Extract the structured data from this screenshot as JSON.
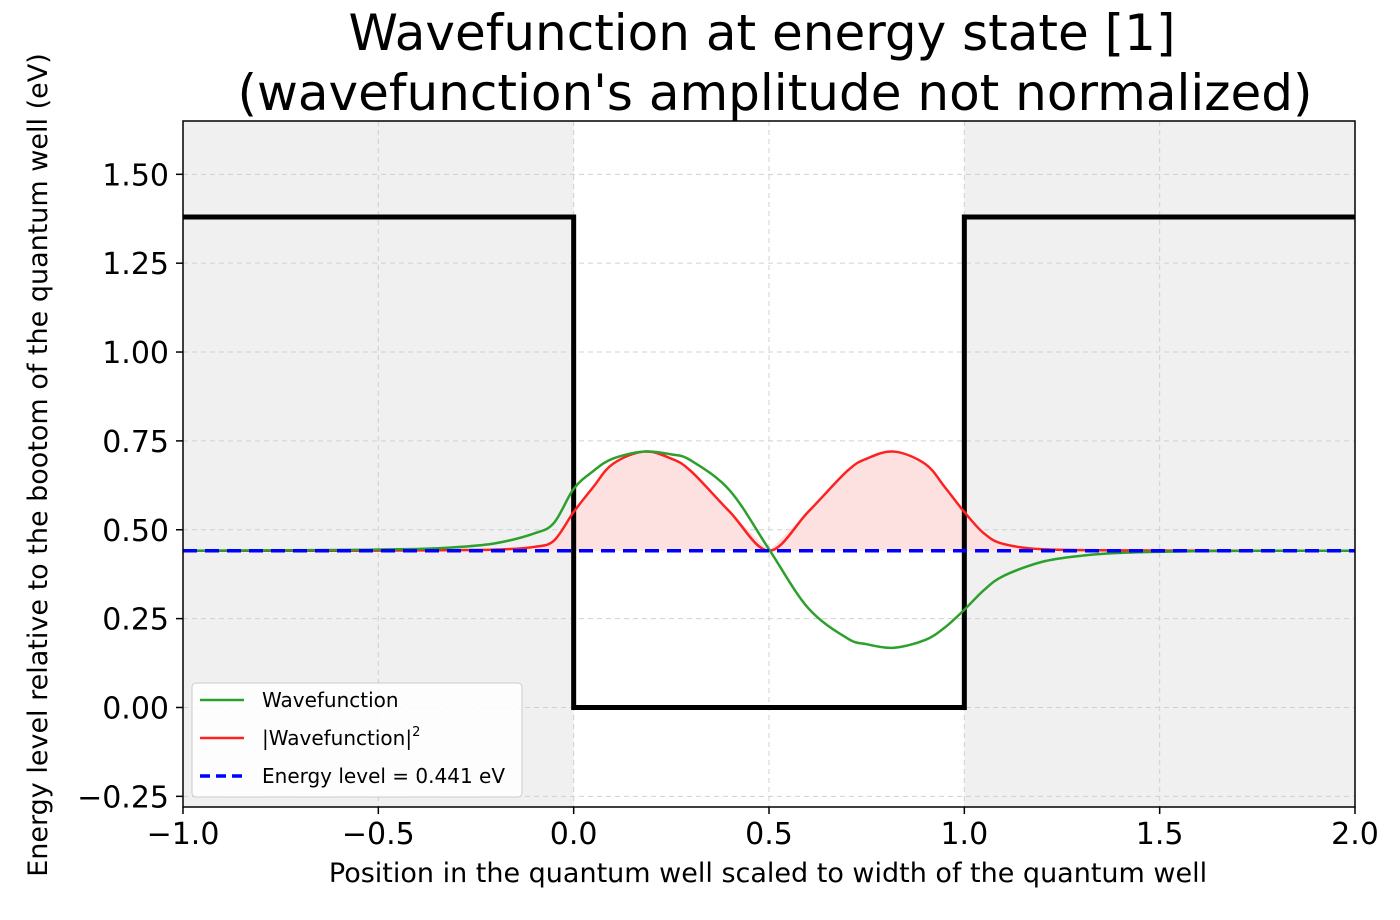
{
  "chart_data": {
    "type": "line",
    "title_line1": "Wavefunction at energy state [1]",
    "title_line2": "(wavefunction's amplitude not normalized)",
    "xlabel": "Position in the quantum well scaled to width of the quantum well",
    "ylabel": "Energy level relative to the bootom of the quantum well (eV)",
    "xlim": [
      -1.0,
      2.0
    ],
    "ylim": [
      -0.28,
      1.65
    ],
    "xticks": [
      -1.0,
      -0.5,
      0.0,
      0.5,
      1.0,
      1.5,
      2.0
    ],
    "xtick_labels": [
      "−1.0",
      "−0.5",
      "0.0",
      "0.5",
      "1.0",
      "1.5",
      "2.0"
    ],
    "yticks": [
      -0.25,
      0.0,
      0.25,
      0.5,
      0.75,
      1.0,
      1.25,
      1.5
    ],
    "ytick_labels": [
      "−0.25",
      "0.00",
      "0.25",
      "0.50",
      "0.75",
      "1.00",
      "1.25",
      "1.50"
    ],
    "grid": true,
    "legend_position": "lower-left",
    "potential": {
      "barrier_height": 1.38,
      "well_x": [
        0.0,
        1.0
      ],
      "barrier_fill_color": "#f0f0f0",
      "line_color": "#000000"
    },
    "energy_level": 0.441,
    "series": [
      {
        "name": "Wavefunction",
        "color": "#2ca02c",
        "x": [
          -1.0,
          -0.8,
          -0.6,
          -0.4,
          -0.3,
          -0.2,
          -0.1,
          -0.05,
          0.0,
          0.05,
          0.1,
          0.18,
          0.25,
          0.3,
          0.4,
          0.5,
          0.6,
          0.7,
          0.75,
          0.82,
          0.9,
          0.95,
          1.0,
          1.05,
          1.1,
          1.2,
          1.3,
          1.4,
          1.6,
          1.8,
          2.0
        ],
        "y": [
          0.441,
          0.442,
          0.443,
          0.446,
          0.451,
          0.462,
          0.49,
          0.52,
          0.615,
          0.665,
          0.7,
          0.72,
          0.712,
          0.695,
          0.61,
          0.445,
          0.28,
          0.195,
          0.178,
          0.168,
          0.19,
          0.225,
          0.275,
          0.33,
          0.37,
          0.41,
          0.427,
          0.435,
          0.44,
          0.441,
          0.441
        ]
      },
      {
        "name": "|Wavefunction|²",
        "color": "#ff2020",
        "fill_color": "#fde0e0",
        "x": [
          -1.0,
          -0.6,
          -0.4,
          -0.2,
          -0.1,
          -0.05,
          0.0,
          0.05,
          0.1,
          0.18,
          0.25,
          0.3,
          0.4,
          0.5,
          0.6,
          0.7,
          0.75,
          0.82,
          0.9,
          0.95,
          1.0,
          1.05,
          1.1,
          1.2,
          1.4,
          1.6,
          2.0
        ],
        "y": [
          0.441,
          0.441,
          0.442,
          0.444,
          0.452,
          0.47,
          0.55,
          0.62,
          0.685,
          0.72,
          0.7,
          0.665,
          0.55,
          0.441,
          0.55,
          0.665,
          0.7,
          0.72,
          0.685,
          0.62,
          0.55,
          0.49,
          0.46,
          0.445,
          0.442,
          0.441,
          0.441
        ]
      }
    ],
    "legend": [
      {
        "label": "Wavefunction",
        "color": "#2ca02c",
        "style": "solid"
      },
      {
        "label": "|Wavefunction|",
        "sup": "2",
        "color": "#ff2020",
        "style": "solid"
      },
      {
        "label": "Energy level = 0.441 eV",
        "color": "#0000ff",
        "style": "dashed"
      }
    ]
  }
}
